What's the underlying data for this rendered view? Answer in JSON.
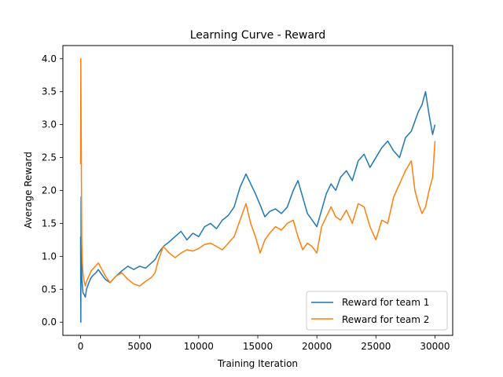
{
  "chart_data": {
    "type": "line",
    "title": "Learning Curve - Reward",
    "xlabel": "Training Iteration",
    "ylabel": "Average Reward",
    "xlim": [
      -1500,
      31500
    ],
    "ylim": [
      -0.2,
      4.2
    ],
    "xticks": [
      0,
      5000,
      10000,
      15000,
      20000,
      25000,
      30000
    ],
    "xtick_labels": [
      "0",
      "5000",
      "10000",
      "15000",
      "20000",
      "25000",
      "30000"
    ],
    "yticks": [
      0.0,
      0.5,
      1.0,
      1.5,
      2.0,
      2.5,
      3.0,
      3.5,
      4.0
    ],
    "ytick_labels": [
      "0.0",
      "0.5",
      "1.0",
      "1.5",
      "2.0",
      "2.5",
      "3.0",
      "3.5",
      "4.0"
    ],
    "grid": false,
    "legend_position": "lower-right",
    "series": [
      {
        "name": "Reward for team 1",
        "color": "#1f77b4",
        "x": [
          0,
          20,
          40,
          60,
          80,
          100,
          150,
          200,
          300,
          400,
          500,
          700,
          900,
          1100,
          1300,
          1500,
          1800,
          2100,
          2500,
          3000,
          3500,
          4000,
          4500,
          5000,
          5500,
          6000,
          6300,
          6600,
          7000,
          7500,
          8000,
          8500,
          9000,
          9500,
          10000,
          10500,
          11000,
          11500,
          12000,
          12500,
          13000,
          13500,
          14000,
          14400,
          14800,
          15200,
          15600,
          16000,
          16500,
          17000,
          17500,
          18000,
          18400,
          18800,
          19200,
          19600,
          20000,
          20400,
          20800,
          21200,
          21600,
          22000,
          22500,
          23000,
          23500,
          24000,
          24500,
          25000,
          25500,
          26000,
          26500,
          27000,
          27500,
          28000,
          28300,
          28600,
          28900,
          29200,
          29500,
          29800,
          30000
        ],
        "values": [
          1.3,
          0.0,
          1.9,
          1.5,
          1.0,
          0.7,
          0.55,
          0.45,
          0.42,
          0.38,
          0.5,
          0.6,
          0.68,
          0.72,
          0.75,
          0.8,
          0.72,
          0.65,
          0.6,
          0.7,
          0.78,
          0.85,
          0.8,
          0.85,
          0.82,
          0.9,
          0.95,
          1.05,
          1.15,
          1.22,
          1.3,
          1.38,
          1.25,
          1.35,
          1.3,
          1.45,
          1.5,
          1.42,
          1.55,
          1.62,
          1.75,
          2.05,
          2.25,
          2.1,
          1.95,
          1.78,
          1.6,
          1.68,
          1.72,
          1.65,
          1.75,
          2.0,
          2.15,
          1.9,
          1.65,
          1.55,
          1.45,
          1.7,
          1.95,
          2.1,
          2.0,
          2.2,
          2.3,
          2.15,
          2.45,
          2.55,
          2.35,
          2.5,
          2.65,
          2.75,
          2.6,
          2.5,
          2.8,
          2.9,
          3.05,
          3.2,
          3.3,
          3.5,
          3.15,
          2.85,
          3.0
        ]
      },
      {
        "name": "Reward for team 2",
        "color": "#ff7f0e",
        "x": [
          0,
          20,
          40,
          60,
          80,
          100,
          150,
          200,
          300,
          400,
          500,
          700,
          900,
          1100,
          1300,
          1500,
          1800,
          2100,
          2500,
          3000,
          3500,
          4000,
          4500,
          5000,
          5500,
          6000,
          6300,
          6600,
          7000,
          7500,
          8000,
          8500,
          9000,
          9500,
          10000,
          10500,
          11000,
          11500,
          12000,
          12500,
          13000,
          13500,
          14000,
          14400,
          14800,
          15200,
          15600,
          16000,
          16500,
          17000,
          17500,
          18000,
          18400,
          18800,
          19200,
          19600,
          20000,
          20400,
          20800,
          21200,
          21600,
          22000,
          22500,
          23000,
          23500,
          24000,
          24500,
          25000,
          25500,
          26000,
          26500,
          27000,
          27500,
          28000,
          28300,
          28600,
          28900,
          29200,
          29500,
          29800,
          30000
        ],
        "values": [
          2.4,
          4.0,
          3.2,
          2.5,
          1.8,
          1.2,
          0.9,
          0.75,
          0.62,
          0.55,
          0.62,
          0.7,
          0.78,
          0.82,
          0.86,
          0.9,
          0.8,
          0.7,
          0.6,
          0.7,
          0.75,
          0.65,
          0.58,
          0.55,
          0.62,
          0.68,
          0.75,
          0.95,
          1.15,
          1.05,
          0.98,
          1.05,
          1.1,
          1.08,
          1.12,
          1.18,
          1.2,
          1.15,
          1.1,
          1.2,
          1.3,
          1.55,
          1.8,
          1.5,
          1.3,
          1.05,
          1.25,
          1.35,
          1.45,
          1.4,
          1.5,
          1.55,
          1.3,
          1.1,
          1.2,
          1.15,
          1.05,
          1.45,
          1.6,
          1.75,
          1.6,
          1.55,
          1.7,
          1.5,
          1.8,
          1.75,
          1.45,
          1.25,
          1.55,
          1.5,
          1.9,
          2.1,
          2.3,
          2.45,
          2.0,
          1.8,
          1.65,
          1.75,
          2.0,
          2.2,
          2.75
        ]
      }
    ]
  }
}
